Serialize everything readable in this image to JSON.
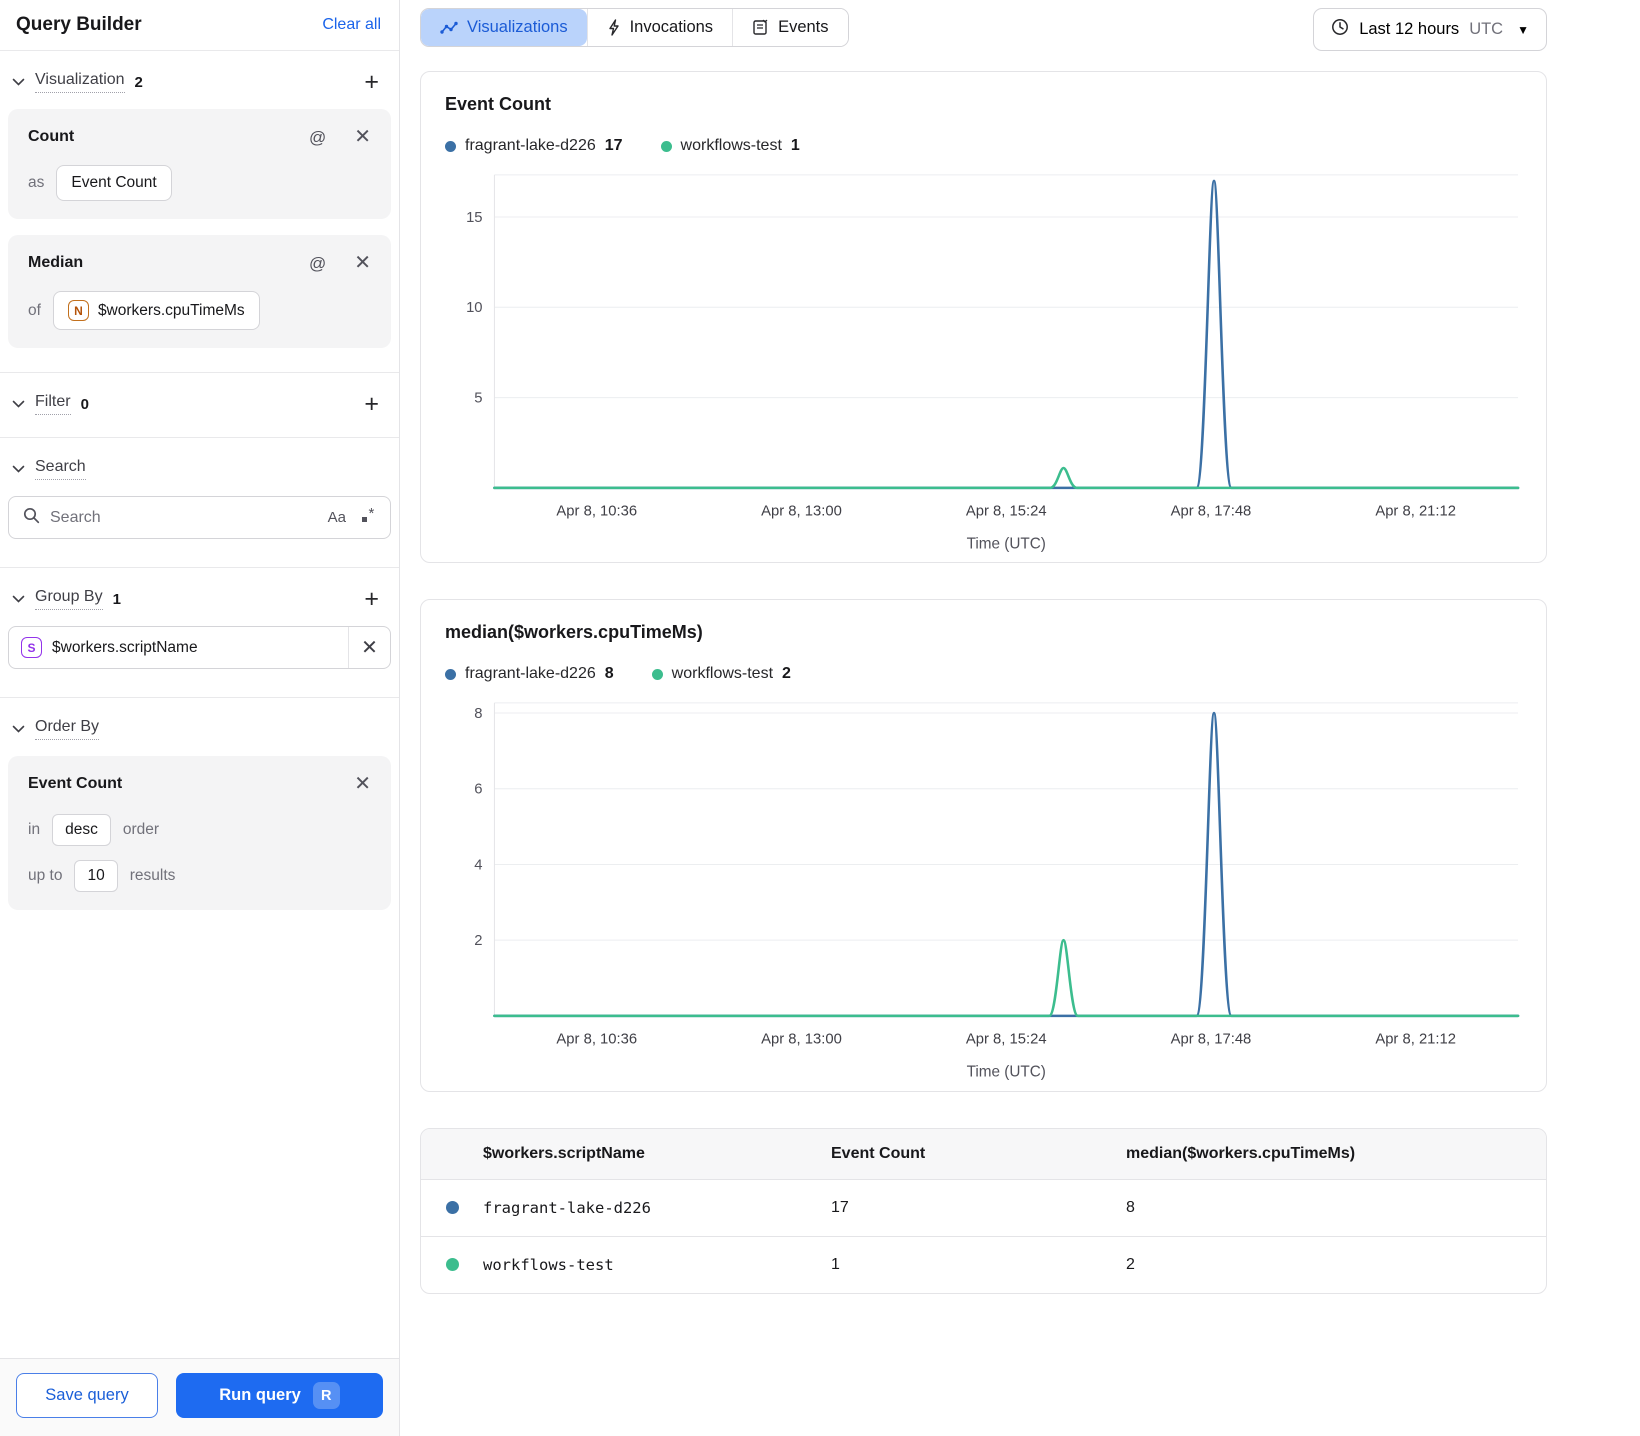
{
  "sidebar": {
    "title": "Query Builder",
    "clear_all": "Clear all",
    "visualization": {
      "label": "Visualization",
      "count": "2",
      "cards": [
        {
          "title": "Count",
          "prefix": "as",
          "value": "Event Count"
        },
        {
          "title": "Median",
          "prefix": "of",
          "badge": "N",
          "value": "$workers.cpuTimeMs"
        }
      ]
    },
    "filter": {
      "label": "Filter",
      "count": "0"
    },
    "search": {
      "label": "Search",
      "placeholder": "Search",
      "case_toggle": "Aa"
    },
    "group_by": {
      "label": "Group By",
      "count": "1",
      "items": [
        {
          "badge": "S",
          "value": "$workers.scriptName"
        }
      ]
    },
    "order_by": {
      "label": "Order By",
      "card": {
        "title": "Event Count",
        "in_label": "in",
        "order_value": "desc",
        "order_suffix": "order",
        "limit_label": "up to",
        "limit_value": "10",
        "limit_suffix": "results"
      }
    },
    "footer": {
      "save": "Save query",
      "run": "Run query",
      "shortcut": "R"
    }
  },
  "header": {
    "tabs": [
      {
        "label": "Visualizations",
        "active": true
      },
      {
        "label": "Invocations",
        "active": false
      },
      {
        "label": "Events",
        "active": false
      }
    ],
    "time_range": {
      "label": "Last 12 hours",
      "zone": "UTC"
    }
  },
  "colors": {
    "series_blue": "#3b70a5",
    "series_green": "#3cbd8e",
    "accent_blue": "#1e6bf1",
    "tab_active_bg": "#bad3fb",
    "tab_active_text": "#1b5bd6",
    "grid": "#eceef0"
  },
  "chart_data": [
    {
      "type": "line",
      "title": "Event Count",
      "xlabel": "Time (UTC)",
      "x_ticks": [
        "Apr 8, 10:36",
        "Apr 8, 13:00",
        "Apr 8, 15:24",
        "Apr 8, 17:48",
        "Apr 8, 21:12"
      ],
      "y_ticks": [
        5,
        10,
        15
      ],
      "ylim": [
        0,
        17.4
      ],
      "grid": true,
      "legend_position": "top",
      "legend": [
        {
          "name": "fragrant-lake-d226",
          "value": "17",
          "color": "#3b70a5"
        },
        {
          "name": "workflows-test",
          "value": "1",
          "color": "#3cbd8e"
        }
      ],
      "series": [
        {
          "name": "fragrant-lake-d226",
          "color": "#3b70a5",
          "baseline": 0,
          "spikes": [
            {
              "x_frac": 0.703,
              "peak": 17,
              "halfwidth_frac": 0.017
            }
          ]
        },
        {
          "name": "workflows-test",
          "color": "#3cbd8e",
          "baseline": 0,
          "spikes": [
            {
              "x_frac": 0.556,
              "peak": 1.1,
              "halfwidth_frac": 0.013
            }
          ]
        }
      ]
    },
    {
      "type": "line",
      "title": "median($workers.cpuTimeMs)",
      "xlabel": "Time (UTC)",
      "x_ticks": [
        "Apr 8, 10:36",
        "Apr 8, 13:00",
        "Apr 8, 15:24",
        "Apr 8, 17:48",
        "Apr 8, 21:12"
      ],
      "y_ticks": [
        2,
        4,
        6,
        8
      ],
      "ylim": [
        0,
        8.3
      ],
      "grid": true,
      "legend_position": "top",
      "legend": [
        {
          "name": "fragrant-lake-d226",
          "value": "8",
          "color": "#3b70a5"
        },
        {
          "name": "workflows-test",
          "value": "2",
          "color": "#3cbd8e"
        }
      ],
      "series": [
        {
          "name": "fragrant-lake-d226",
          "color": "#3b70a5",
          "baseline": 0,
          "spikes": [
            {
              "x_frac": 0.703,
              "peak": 8,
              "halfwidth_frac": 0.017
            }
          ]
        },
        {
          "name": "workflows-test",
          "color": "#3cbd8e",
          "baseline": 0,
          "spikes": [
            {
              "x_frac": 0.556,
              "peak": 2,
              "halfwidth_frac": 0.014
            }
          ]
        }
      ]
    }
  ],
  "table": {
    "columns": [
      "$workers.scriptName",
      "Event Count",
      "median($workers.cpuTimeMs)"
    ],
    "rows": [
      {
        "color": "#3b70a5",
        "name": "fragrant-lake-d226",
        "event_count": "17",
        "median": "8"
      },
      {
        "color": "#3cbd8e",
        "name": "workflows-test",
        "event_count": "1",
        "median": "2"
      }
    ]
  }
}
